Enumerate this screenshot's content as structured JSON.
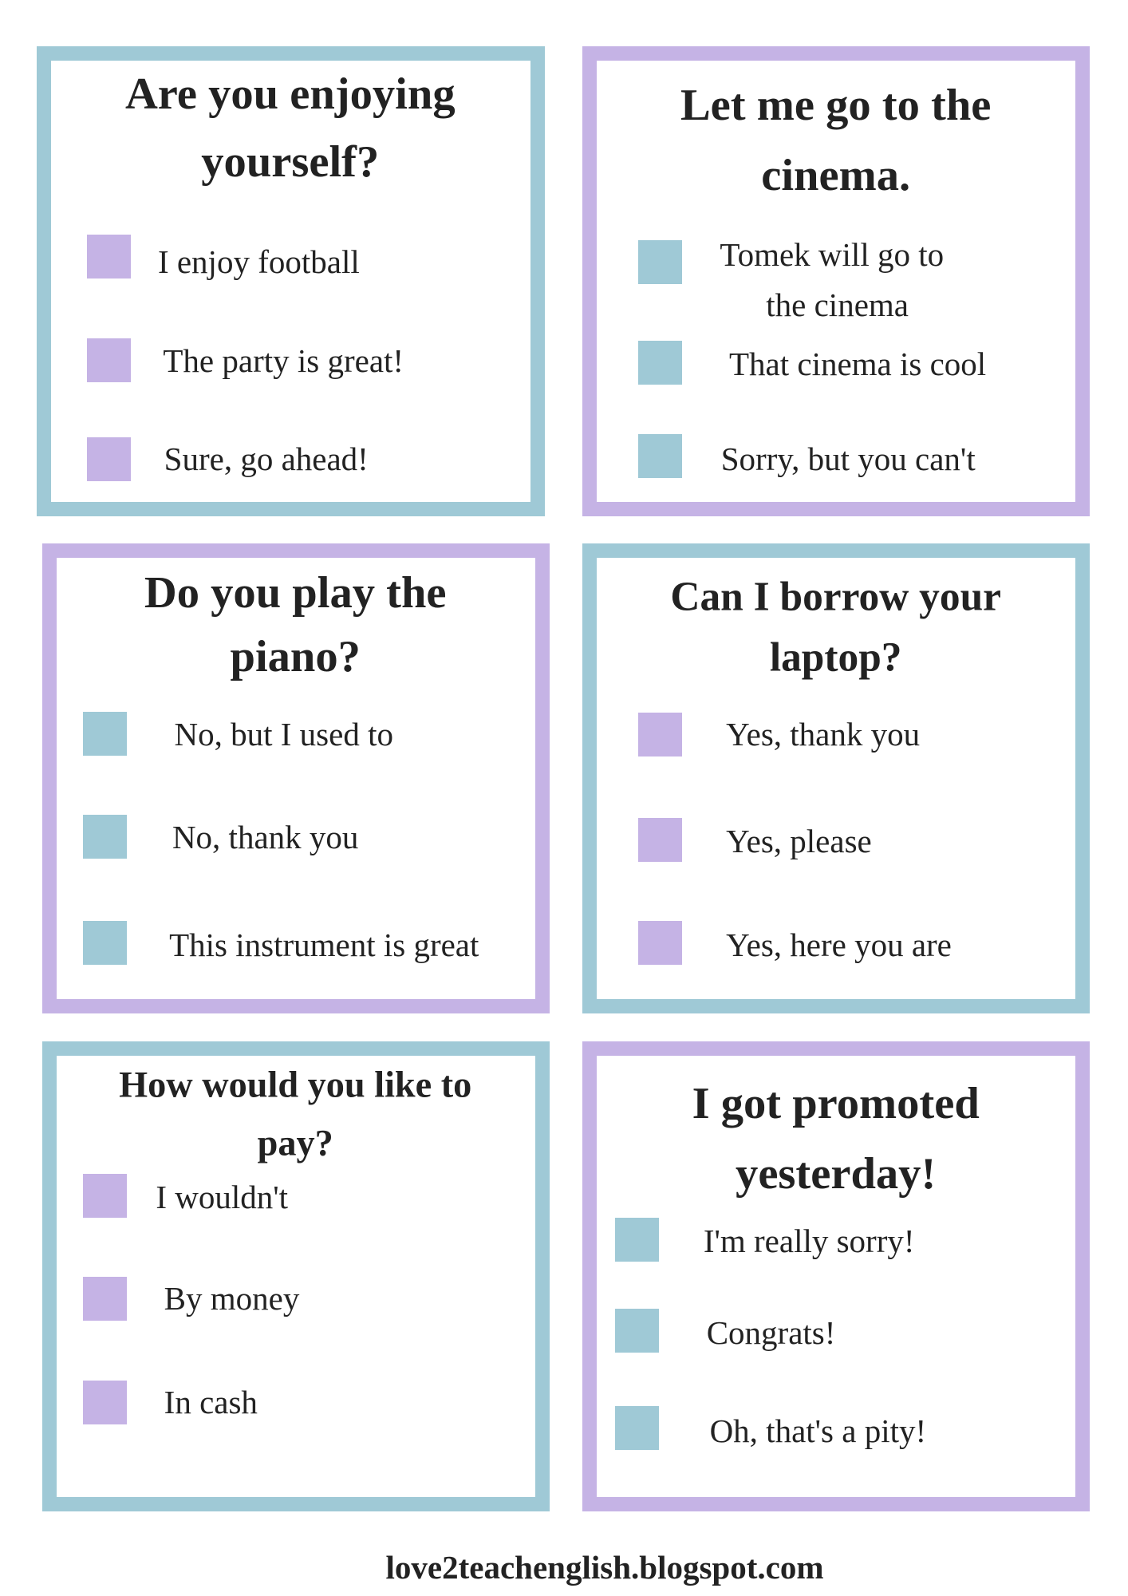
{
  "colors": {
    "blue": "#9fc9d6",
    "purple": "#c5b3e5",
    "text": "#222222"
  },
  "cards": [
    {
      "border": "blue",
      "square": "purple",
      "title": [
        "Are you enjoying",
        "yourself?"
      ],
      "options": [
        [
          "I enjoy football"
        ],
        [
          "The party is great!"
        ],
        [
          "Sure, go ahead!"
        ]
      ]
    },
    {
      "border": "purple",
      "square": "blue",
      "title": [
        "Let me go to the",
        "cinema."
      ],
      "options": [
        [
          "Tomek will go to",
          "the cinema"
        ],
        [
          "That cinema is cool"
        ],
        [
          "Sorry, but you can't"
        ]
      ]
    },
    {
      "border": "purple",
      "square": "blue",
      "title": [
        "Do you play the",
        "piano?"
      ],
      "options": [
        [
          "No, but I used to"
        ],
        [
          "No, thank you"
        ],
        [
          "This instrument is great"
        ]
      ]
    },
    {
      "border": "blue",
      "square": "purple",
      "title": [
        "Can I borrow your",
        "laptop?"
      ],
      "options": [
        [
          "Yes, thank you"
        ],
        [
          "Yes, please"
        ],
        [
          "Yes, here you are"
        ]
      ]
    },
    {
      "border": "blue",
      "square": "purple",
      "title": [
        "How would you like to",
        "pay?"
      ],
      "options": [
        [
          "I wouldn't"
        ],
        [
          "By money"
        ],
        [
          "In cash"
        ]
      ]
    },
    {
      "border": "purple",
      "square": "blue",
      "title": [
        "I got promoted",
        "yesterday!"
      ],
      "options": [
        [
          "I'm really sorry!"
        ],
        [
          "Congrats!"
        ],
        [
          "Oh, that's a pity!"
        ]
      ]
    }
  ],
  "footer": "love2teachenglish.blogspot.com"
}
